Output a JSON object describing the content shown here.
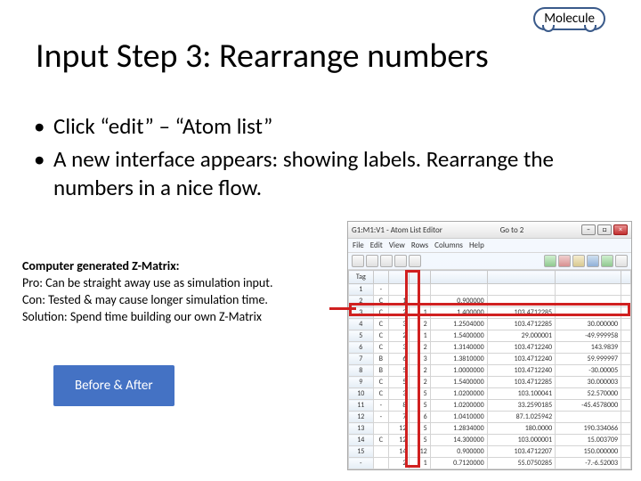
{
  "badge": {
    "label": "Molecule"
  },
  "title": "Input Step 3: Rearrange numbers",
  "bullets": [
    "Click “edit” – “Atom list”",
    "A new interface appears: showing labels. Rearrange the numbers in a nice flow."
  ],
  "zmatrix": {
    "heading": "Computer generated Z-Matrix:",
    "lines": [
      "Pro: Can be straight away use as simulation input.",
      "Con: Tested & may cause longer simulation time.",
      "Solution: Spend time building our own Z-Matrix"
    ]
  },
  "button": {
    "label": "Before & After"
  },
  "editor": {
    "window_title": "G1:M1:V1 - Atom List Editor",
    "go_to_label": "Go to",
    "go_to_value": "2",
    "menus": [
      "File",
      "Edit",
      "View",
      "Rows",
      "Columns",
      "Help"
    ],
    "headers": [
      "Tag",
      "",
      "",
      "",
      "",
      "",
      "",
      ""
    ],
    "rows": [
      [
        "1",
        "-",
        "",
        "",
        "",
        "",
        "",
        ""
      ],
      [
        "2",
        "C",
        "1",
        "",
        "0.900000",
        "",
        "",
        ""
      ],
      [
        "3",
        "C",
        "2",
        "1",
        "1.400000",
        "103.4712285",
        "",
        ""
      ],
      [
        "4",
        "C",
        "3",
        "2",
        "1.2504000",
        "103.4712285",
        "30.000000",
        ""
      ],
      [
        "5",
        "C",
        "2",
        "1",
        "1.5400000",
        "29.000001",
        "-49.999958",
        ""
      ],
      [
        "6",
        "C",
        "3",
        "2",
        "1.3140000",
        "103.4712240",
        "143.9839",
        ""
      ],
      [
        "7",
        "B",
        "6",
        "3",
        "1.3810000",
        "103.4712240",
        "59.999997",
        ""
      ],
      [
        "8",
        "B",
        "5",
        "2",
        "1.0000000",
        "103.4712240",
        "-30.00005",
        ""
      ],
      [
        "9",
        "C",
        "5",
        "2",
        "1.5400000",
        "103.4712285",
        "30.000003",
        ""
      ],
      [
        "10",
        "C",
        "3",
        "5",
        "1.0200000",
        "103.100041",
        "52.570000",
        ""
      ],
      [
        "11",
        "-",
        "8",
        "5",
        "1.0200000",
        "33.2590185",
        "-45.4578000",
        ""
      ],
      [
        "12",
        "-",
        "7",
        "6",
        "1.0410000",
        "87.1.025942",
        "",
        ""
      ],
      [
        "13",
        "",
        "12",
        "5",
        "1.2834000",
        "180.0000",
        "190.334066",
        ""
      ],
      [
        "14",
        "C",
        "12",
        "5",
        "14.300000",
        "103.000001",
        "15.003709",
        ""
      ],
      [
        "15",
        "",
        "14",
        "12",
        "0.900000",
        "103.4712207",
        "150.000000",
        ""
      ],
      [
        "-",
        "",
        "2",
        "1",
        "0.7120000",
        "55.0750285",
        "-7.-6.52003",
        ""
      ]
    ],
    "colors": {
      "titlebar_bg": "#e5e5e5",
      "close_btn": "#c23030",
      "grid_header_bg": "#e4edf5",
      "highlight_border": "#d02020",
      "button_bg": "#4472c4"
    }
  }
}
